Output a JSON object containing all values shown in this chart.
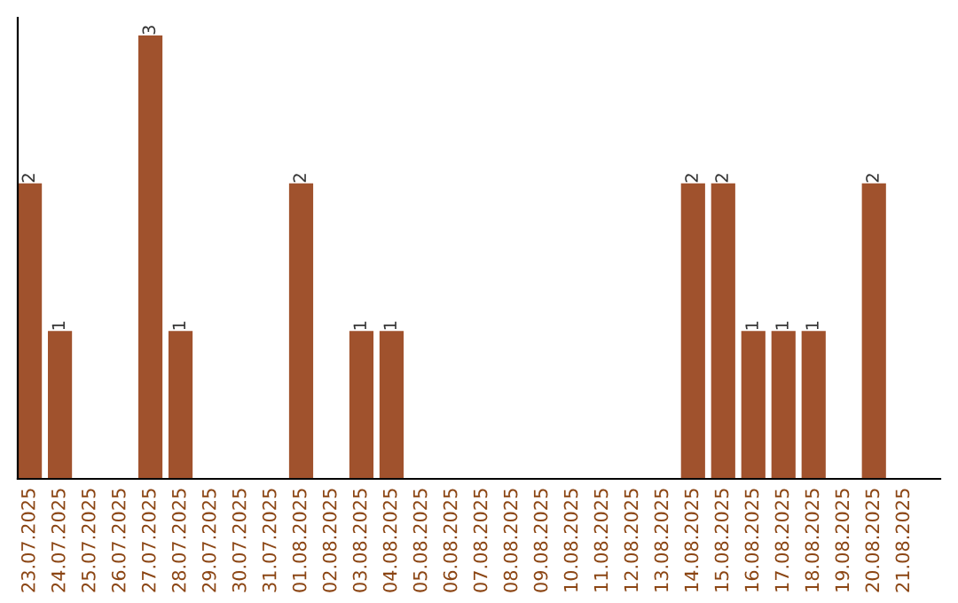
{
  "chart_data": {
    "type": "bar",
    "categories": [
      "23.07.2025",
      "24.07.2025",
      "25.07.2025",
      "26.07.2025",
      "27.07.2025",
      "28.07.2025",
      "29.07.2025",
      "30.07.2025",
      "31.07.2025",
      "01.08.2025",
      "02.08.2025",
      "03.08.2025",
      "04.08.2025",
      "05.08.2025",
      "06.08.2025",
      "07.08.2025",
      "08.08.2025",
      "09.08.2025",
      "10.08.2025",
      "11.08.2025",
      "12.08.2025",
      "13.08.2025",
      "14.08.2025",
      "15.08.2025",
      "16.08.2025",
      "17.08.2025",
      "18.08.2025",
      "19.08.2025",
      "20.08.2025",
      "21.08.2025"
    ],
    "values": [
      2,
      1,
      0,
      0,
      3,
      1,
      0,
      0,
      0,
      2,
      0,
      1,
      1,
      0,
      0,
      0,
      0,
      0,
      0,
      0,
      0,
      0,
      2,
      2,
      1,
      1,
      1,
      0,
      2,
      0
    ],
    "color": "#a0522d",
    "value_labels": [
      "2",
      "1",
      null,
      null,
      "3",
      "1",
      null,
      null,
      null,
      "2",
      null,
      "1",
      "1",
      null,
      null,
      null,
      null,
      null,
      null,
      null,
      null,
      null,
      "2",
      "2",
      "1",
      "1",
      "1",
      null,
      "2",
      null
    ],
    "ylim": [
      0,
      3.12
    ],
    "tick_labels": "x",
    "grid": false,
    "legend": false
  }
}
